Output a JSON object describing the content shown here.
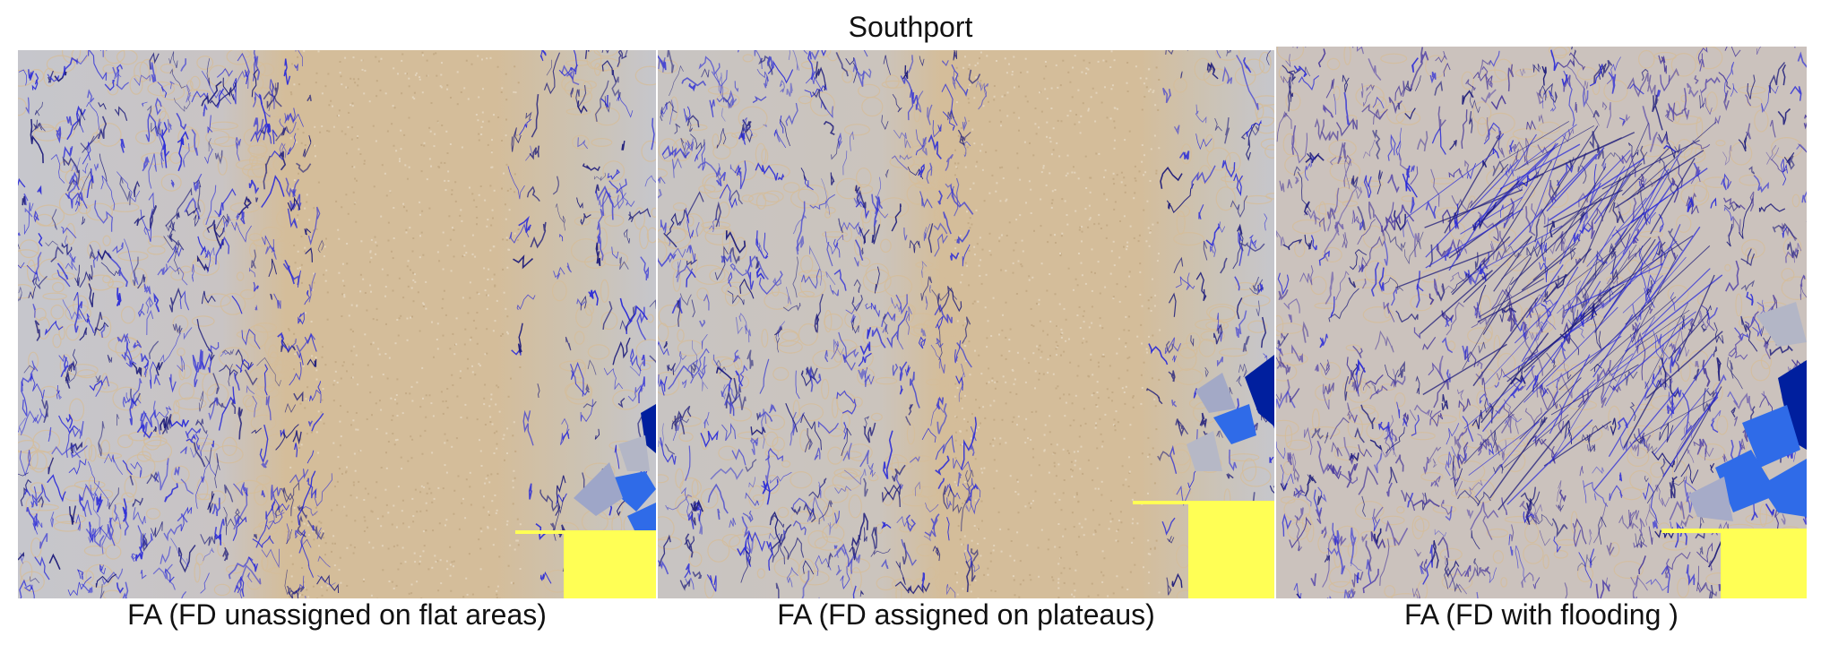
{
  "figure": {
    "title": "Southport"
  },
  "panels": [
    {
      "id": "unassigned",
      "caption": "FA (FD unassigned on flat areas)"
    },
    {
      "id": "plateaus",
      "caption": "FA (FD assigned on plateaus)"
    },
    {
      "id": "flooding",
      "caption": "FA (FD with flooding )"
    }
  ],
  "colors": {
    "flat_tan": "#d4bd9a",
    "terrain_gray": "#c7c7cc",
    "flow_blue": "#2a2ad8",
    "flow_navy": "#1c1a7a",
    "basin_blue": "#2f6be8",
    "basin_dark": "#001f9e",
    "nodata_yellow": "#ffff55"
  }
}
